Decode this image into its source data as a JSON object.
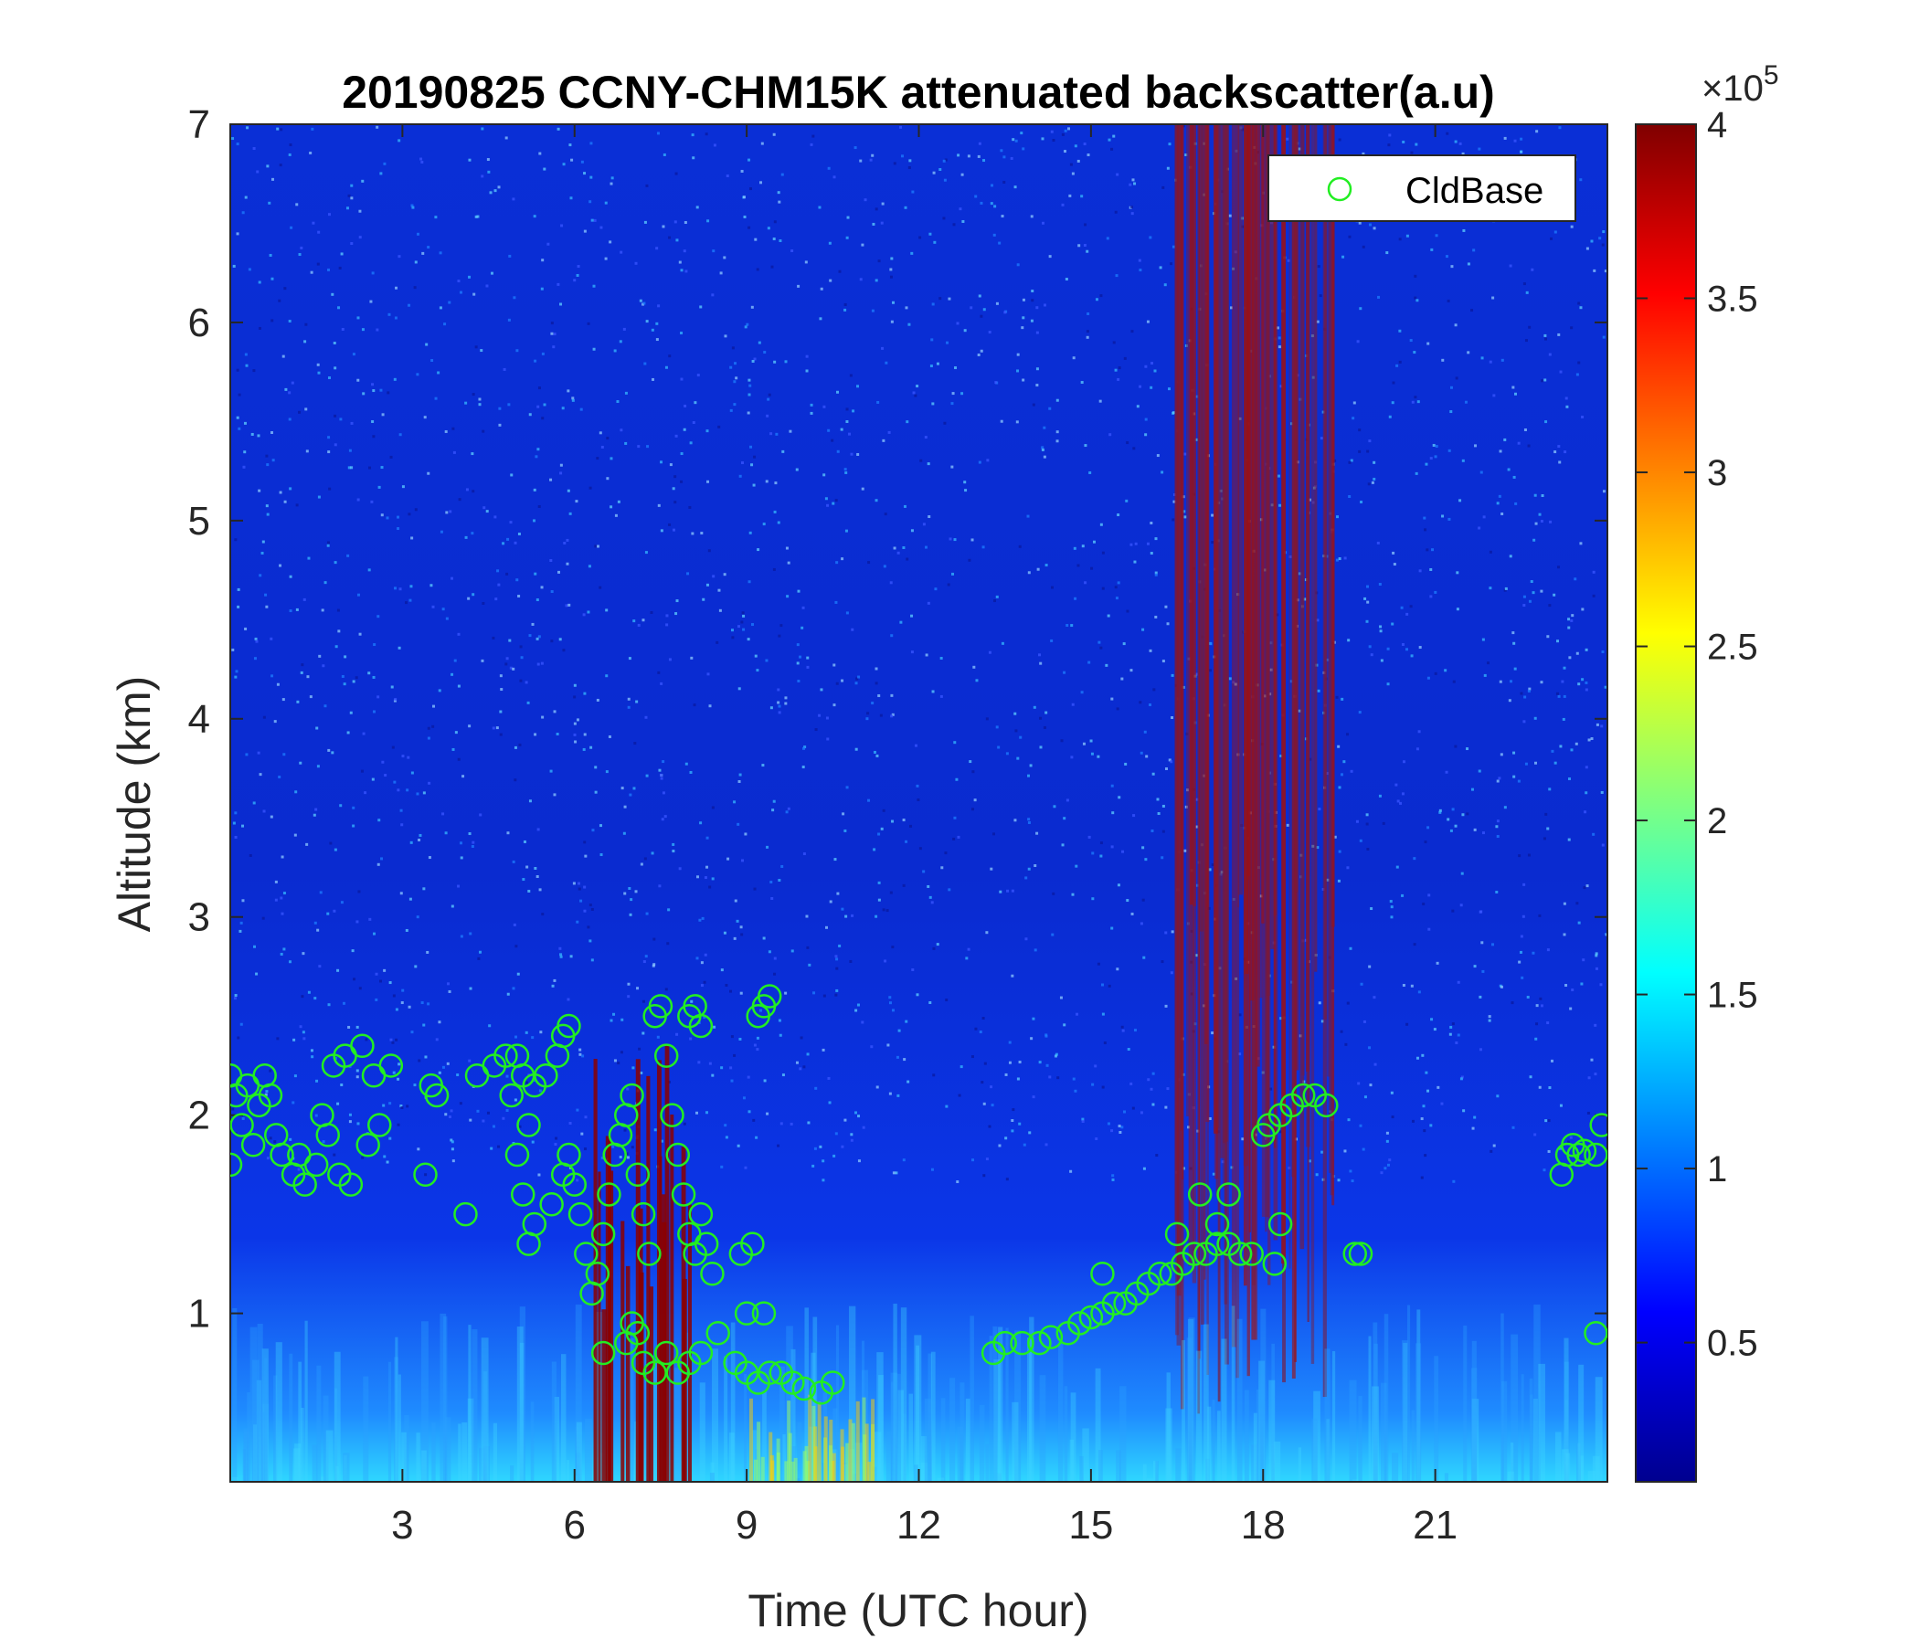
{
  "chart_data": {
    "type": "heatmap",
    "title": "20190825 CCNY-CHM15K attenuated backscatter(a.u)",
    "xlabel": "Time (UTC hour)",
    "ylabel": "Altitude (km)",
    "xlim": [
      0,
      24
    ],
    "ylim": [
      0.15,
      7
    ],
    "xticks": [
      3,
      6,
      9,
      12,
      15,
      18,
      21
    ],
    "yticks": [
      1,
      2,
      3,
      4,
      5,
      6,
      7
    ],
    "colorbar": {
      "colormap": "jet",
      "range": [
        0.1,
        4
      ],
      "ticks": [
        0.5,
        1,
        1.5,
        2,
        2.5,
        3,
        3.5,
        4
      ],
      "exponent_label": "×10",
      "exponent_power": "5"
    },
    "legend": {
      "location": "top-right",
      "entries": [
        "CldBase"
      ]
    },
    "series": [
      {
        "name": "CldBase",
        "marker": "circle",
        "color": "#22ee22",
        "points": [
          [
            0.0,
            2.2
          ],
          [
            0.1,
            2.1
          ],
          [
            0.2,
            1.95
          ],
          [
            0.3,
            2.15
          ],
          [
            0.5,
            2.05
          ],
          [
            0.6,
            2.2
          ],
          [
            0.8,
            1.9
          ],
          [
            0.0,
            1.75
          ],
          [
            0.4,
            1.85
          ],
          [
            0.7,
            2.1
          ],
          [
            0.9,
            1.8
          ],
          [
            1.1,
            1.7
          ],
          [
            1.3,
            1.65
          ],
          [
            1.5,
            1.75
          ],
          [
            1.7,
            1.9
          ],
          [
            1.9,
            1.7
          ],
          [
            2.1,
            1.65
          ],
          [
            1.2,
            1.8
          ],
          [
            1.6,
            2.0
          ],
          [
            1.8,
            2.25
          ],
          [
            2.0,
            2.3
          ],
          [
            2.3,
            2.35
          ],
          [
            2.5,
            2.2
          ],
          [
            2.6,
            1.95
          ],
          [
            2.4,
            1.85
          ],
          [
            2.8,
            2.25
          ],
          [
            3.5,
            2.15
          ],
          [
            3.6,
            2.1
          ],
          [
            3.4,
            1.7
          ],
          [
            4.1,
            1.5
          ],
          [
            4.3,
            2.2
          ],
          [
            4.6,
            2.25
          ],
          [
            4.8,
            2.3
          ],
          [
            5.0,
            2.3
          ],
          [
            5.1,
            2.2
          ],
          [
            4.9,
            2.1
          ],
          [
            5.3,
            2.15
          ],
          [
            5.5,
            2.2
          ],
          [
            5.7,
            2.3
          ],
          [
            5.8,
            2.4
          ],
          [
            5.9,
            2.45
          ],
          [
            5.2,
            1.95
          ],
          [
            5.0,
            1.8
          ],
          [
            5.1,
            1.6
          ],
          [
            5.3,
            1.45
          ],
          [
            5.2,
            1.35
          ],
          [
            5.6,
            1.55
          ],
          [
            5.8,
            1.7
          ],
          [
            5.9,
            1.8
          ],
          [
            6.0,
            1.65
          ],
          [
            6.1,
            1.5
          ],
          [
            6.2,
            1.3
          ],
          [
            6.3,
            1.1
          ],
          [
            6.4,
            1.2
          ],
          [
            6.5,
            1.4
          ],
          [
            6.6,
            1.6
          ],
          [
            6.7,
            1.8
          ],
          [
            6.8,
            1.9
          ],
          [
            6.9,
            2.0
          ],
          [
            7.0,
            2.1
          ],
          [
            7.1,
            1.7
          ],
          [
            7.2,
            1.5
          ],
          [
            7.3,
            1.3
          ],
          [
            7.4,
            2.5
          ],
          [
            7.5,
            2.55
          ],
          [
            7.6,
            2.3
          ],
          [
            7.7,
            2.0
          ],
          [
            7.8,
            1.8
          ],
          [
            7.9,
            1.6
          ],
          [
            8.0,
            1.4
          ],
          [
            8.1,
            1.3
          ],
          [
            8.2,
            1.5
          ],
          [
            8.3,
            1.35
          ],
          [
            8.4,
            1.2
          ],
          [
            8.0,
            2.5
          ],
          [
            8.1,
            2.55
          ],
          [
            8.2,
            2.45
          ],
          [
            6.5,
            0.8
          ],
          [
            6.9,
            0.85
          ],
          [
            7.0,
            0.95
          ],
          [
            7.1,
            0.9
          ],
          [
            7.2,
            0.75
          ],
          [
            7.4,
            0.7
          ],
          [
            7.6,
            0.8
          ],
          [
            7.8,
            0.7
          ],
          [
            8.0,
            0.75
          ],
          [
            8.2,
            0.8
          ],
          [
            8.5,
            0.9
          ],
          [
            8.8,
            0.75
          ],
          [
            9.0,
            0.7
          ],
          [
            9.2,
            0.65
          ],
          [
            9.4,
            0.7
          ],
          [
            9.6,
            0.7
          ],
          [
            9.8,
            0.65
          ],
          [
            10.0,
            0.62
          ],
          [
            10.3,
            0.6
          ],
          [
            10.5,
            0.65
          ],
          [
            9.0,
            1.0
          ],
          [
            9.3,
            1.0
          ],
          [
            8.9,
            1.3
          ],
          [
            9.1,
            1.35
          ],
          [
            9.2,
            2.5
          ],
          [
            9.3,
            2.55
          ],
          [
            9.4,
            2.6
          ],
          [
            13.3,
            0.8
          ],
          [
            13.5,
            0.85
          ],
          [
            13.8,
            0.85
          ],
          [
            14.1,
            0.85
          ],
          [
            14.3,
            0.88
          ],
          [
            14.6,
            0.9
          ],
          [
            14.8,
            0.95
          ],
          [
            15.0,
            0.98
          ],
          [
            15.2,
            1.0
          ],
          [
            15.4,
            1.05
          ],
          [
            15.6,
            1.05
          ],
          [
            15.8,
            1.1
          ],
          [
            16.0,
            1.15
          ],
          [
            16.2,
            1.2
          ],
          [
            16.4,
            1.2
          ],
          [
            16.6,
            1.25
          ],
          [
            16.8,
            1.3
          ],
          [
            17.0,
            1.3
          ],
          [
            17.2,
            1.35
          ],
          [
            17.4,
            1.35
          ],
          [
            17.6,
            1.3
          ],
          [
            17.8,
            1.3
          ],
          [
            15.2,
            1.2
          ],
          [
            16.5,
            1.4
          ],
          [
            17.2,
            1.45
          ],
          [
            17.4,
            1.6
          ],
          [
            16.9,
            1.6
          ],
          [
            18.2,
            1.25
          ],
          [
            18.3,
            1.45
          ],
          [
            18.0,
            1.9
          ],
          [
            18.1,
            1.95
          ],
          [
            18.3,
            2.0
          ],
          [
            18.5,
            2.05
          ],
          [
            18.7,
            2.1
          ],
          [
            18.9,
            2.1
          ],
          [
            19.1,
            2.05
          ],
          [
            19.6,
            1.3
          ],
          [
            19.7,
            1.3
          ],
          [
            23.2,
            1.7
          ],
          [
            23.3,
            1.8
          ],
          [
            23.4,
            1.85
          ],
          [
            23.5,
            1.8
          ],
          [
            23.6,
            1.82
          ],
          [
            23.8,
            1.8
          ],
          [
            23.9,
            1.95
          ],
          [
            23.8,
            0.9
          ]
        ]
      }
    ]
  }
}
